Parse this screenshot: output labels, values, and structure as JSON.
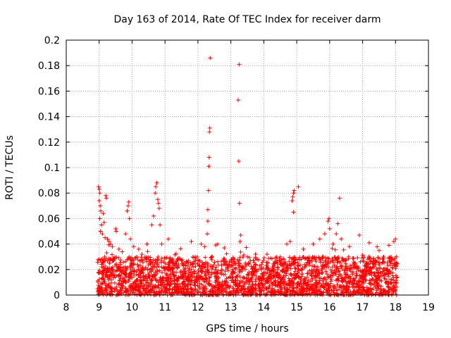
{
  "chart_data": {
    "type": "scatter",
    "title": "Day 163 of 2014, Rate Of TEC Index for receiver darm",
    "xlabel": "GPS time / hours",
    "ylabel": "ROTI / TECUs",
    "xlim": [
      8,
      19
    ],
    "ylim": [
      0,
      0.2
    ],
    "xticks": [
      "8",
      "9",
      "10",
      "11",
      "12",
      "13",
      "14",
      "15",
      "16",
      "17",
      "18",
      "19"
    ],
    "yticks": [
      "0",
      "0.02",
      "0.04",
      "0.06",
      "0.08",
      "0.1",
      "0.12",
      "0.14",
      "0.16",
      "0.18",
      "0.2"
    ],
    "grid": true,
    "marker": "+",
    "marker_color": "#ff0000",
    "series": [
      {
        "name": "ROTI",
        "points": [
          [
            8.98,
            0.085
          ],
          [
            9.0,
            0.083
          ],
          [
            9.02,
            0.08
          ],
          [
            9.0,
            0.074
          ],
          [
            9.03,
            0.07
          ],
          [
            9.05,
            0.066
          ],
          [
            9.02,
            0.06
          ],
          [
            9.07,
            0.055
          ],
          [
            9.04,
            0.05
          ],
          [
            9.1,
            0.048
          ],
          [
            9.12,
            0.064
          ],
          [
            9.15,
            0.057
          ],
          [
            9.18,
            0.045
          ],
          [
            9.2,
            0.078
          ],
          [
            9.22,
            0.076
          ],
          [
            9.25,
            0.044
          ],
          [
            9.3,
            0.042
          ],
          [
            9.35,
            0.04
          ],
          [
            9.4,
            0.038
          ],
          [
            9.5,
            0.052
          ],
          [
            9.52,
            0.05
          ],
          [
            9.6,
            0.036
          ],
          [
            9.7,
            0.034
          ],
          [
            9.8,
            0.048
          ],
          [
            9.85,
            0.066
          ],
          [
            9.88,
            0.07
          ],
          [
            9.9,
            0.073
          ],
          [
            9.92,
            0.06
          ],
          [
            9.95,
            0.044
          ],
          [
            10.05,
            0.038
          ],
          [
            10.2,
            0.036
          ],
          [
            10.3,
            0.032
          ],
          [
            10.45,
            0.04
          ],
          [
            10.6,
            0.055
          ],
          [
            10.65,
            0.062
          ],
          [
            10.7,
            0.08
          ],
          [
            10.72,
            0.085
          ],
          [
            10.75,
            0.088
          ],
          [
            10.78,
            0.075
          ],
          [
            10.8,
            0.072
          ],
          [
            10.82,
            0.068
          ],
          [
            10.85,
            0.055
          ],
          [
            10.9,
            0.04
          ],
          [
            11.1,
            0.044
          ],
          [
            11.5,
            0.027
          ],
          [
            11.8,
            0.042
          ],
          [
            12.1,
            0.04
          ],
          [
            12.2,
            0.038
          ],
          [
            12.3,
            0.067
          ],
          [
            12.32,
            0.082
          ],
          [
            12.33,
            0.101
          ],
          [
            12.34,
            0.108
          ],
          [
            12.35,
            0.128
          ],
          [
            12.36,
            0.131
          ],
          [
            12.37,
            0.186
          ],
          [
            12.3,
            0.058
          ],
          [
            12.28,
            0.048
          ],
          [
            12.6,
            0.04
          ],
          [
            12.8,
            0.037
          ],
          [
            13.25,
            0.181
          ],
          [
            13.22,
            0.153
          ],
          [
            13.24,
            0.105
          ],
          [
            13.26,
            0.072
          ],
          [
            13.3,
            0.047
          ],
          [
            13.28,
            0.042
          ],
          [
            13.5,
            0.03
          ],
          [
            13.8,
            0.028
          ],
          [
            14.1,
            0.032
          ],
          [
            14.5,
            0.03
          ],
          [
            14.7,
            0.04
          ],
          [
            14.8,
            0.042
          ],
          [
            14.88,
            0.077
          ],
          [
            14.9,
            0.08
          ],
          [
            14.92,
            0.082
          ],
          [
            14.86,
            0.074
          ],
          [
            14.9,
            0.065
          ],
          [
            15.05,
            0.085
          ],
          [
            15.2,
            0.036
          ],
          [
            15.5,
            0.04
          ],
          [
            15.7,
            0.044
          ],
          [
            15.85,
            0.048
          ],
          [
            15.95,
            0.058
          ],
          [
            15.98,
            0.06
          ],
          [
            16.0,
            0.052
          ],
          [
            16.1,
            0.04
          ],
          [
            16.2,
            0.048
          ],
          [
            16.25,
            0.056
          ],
          [
            16.3,
            0.076
          ],
          [
            16.35,
            0.044
          ],
          [
            16.6,
            0.038
          ],
          [
            16.9,
            0.047
          ],
          [
            17.2,
            0.041
          ],
          [
            17.5,
            0.035
          ],
          [
            17.8,
            0.039
          ],
          [
            17.95,
            0.042
          ],
          [
            18.0,
            0.044
          ],
          [
            18.02,
            0.03
          ]
        ]
      }
    ],
    "dense_band": {
      "description": "dense cluster of ROTI points",
      "x_range": [
        8.95,
        18.05
      ],
      "y_range": [
        0.0,
        0.03
      ]
    }
  }
}
